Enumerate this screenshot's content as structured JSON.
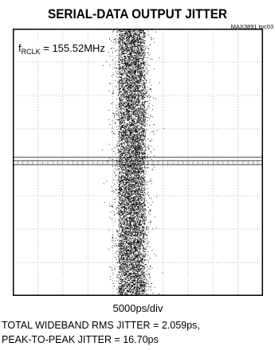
{
  "chart_data": {
    "type": "scatter",
    "title": "SERIAL-DATA OUTPUT JITTER",
    "part_id": "MAX3891 toc03",
    "annotation": {
      "prefix": "f",
      "subscript": "RCLK",
      "suffix": " = 155.52MHz"
    },
    "x_scale": "5000ps/div",
    "notes": [
      "TOTAL WIDEBAND RMS JITTER = 2.059ps,",
      "PEAK-TO-PEAK JITTER = 16.70ps"
    ],
    "grid": {
      "divisions_x": 10,
      "divisions_y": 8,
      "subdivisions": 5,
      "style": "dotted"
    },
    "trace": {
      "x_center_div": 4.75,
      "spread_div": 0.62,
      "peak_to_peak_div": 1.25,
      "color": "#000000"
    },
    "reference_lines_div": [
      3.85,
      3.95,
      4.07
    ]
  }
}
